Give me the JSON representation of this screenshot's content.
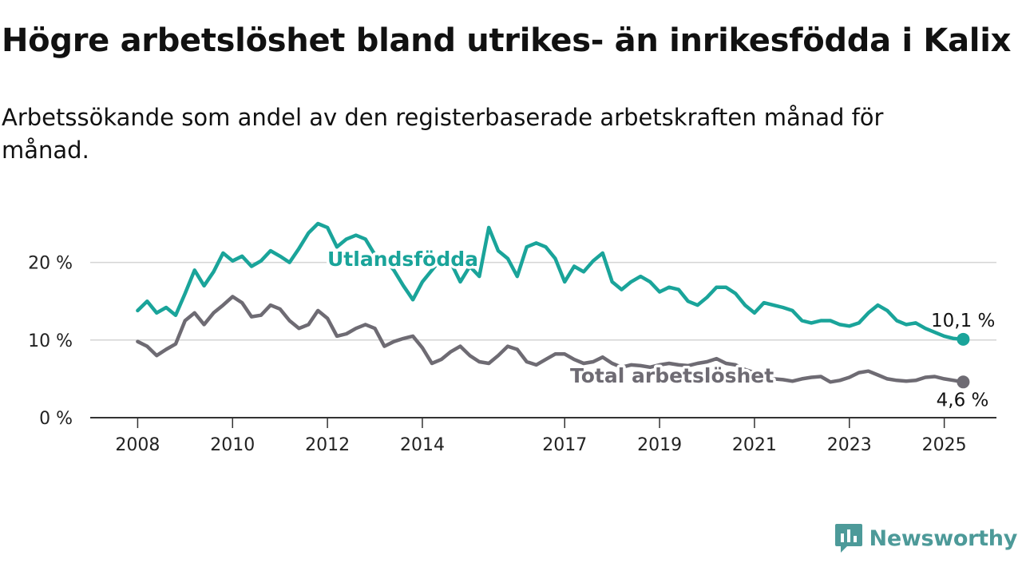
{
  "title": "Högre arbetslöshet bland utrikes- än inrikesfödda i Kalix",
  "subtitle": "Arbetssökande som andel av den registerbaserade arbetskraften månad för månad.",
  "brand": {
    "name": "Newsworthy",
    "color": "#4d9a99"
  },
  "chart_data": {
    "type": "line",
    "title": "Högre arbetslöshet bland utrikes- än inrikesfödda i Kalix",
    "subtitle": "Arbetssökande som andel av den registerbaserade arbetskraften månad för månad.",
    "xlabel": "",
    "ylabel": "",
    "xlim": [
      2008.0,
      2025.4
    ],
    "ylim": [
      0,
      25
    ],
    "yticks": [
      0,
      10,
      20
    ],
    "ytick_labels": [
      "0 %",
      "10 %",
      "20 %"
    ],
    "xticks": [
      2008,
      2010,
      2012,
      2014,
      2017,
      2019,
      2021,
      2023,
      2025
    ],
    "xtick_labels": [
      "2008",
      "2010",
      "2012",
      "2014",
      "2017",
      "2019",
      "2021",
      "2023",
      "2025"
    ],
    "grid": "horizontal",
    "legend": "direct labels on lines",
    "series": [
      {
        "name": "Utlandsfödda",
        "color": "#1aa49a",
        "end_label": "10,1 %",
        "x": [
          2008.0,
          2008.2,
          2008.4,
          2008.6,
          2008.8,
          2009.0,
          2009.2,
          2009.4,
          2009.6,
          2009.8,
          2010.0,
          2010.2,
          2010.4,
          2010.6,
          2010.8,
          2011.0,
          2011.2,
          2011.4,
          2011.6,
          2011.8,
          2012.0,
          2012.2,
          2012.4,
          2012.6,
          2012.8,
          2013.0,
          2013.2,
          2013.4,
          2013.6,
          2013.8,
          2014.0,
          2014.2,
          2014.4,
          2014.6,
          2014.8,
          2015.0,
          2015.2,
          2015.4,
          2015.6,
          2015.8,
          2016.0,
          2016.2,
          2016.4,
          2016.6,
          2016.8,
          2017.0,
          2017.2,
          2017.4,
          2017.6,
          2017.8,
          2018.0,
          2018.2,
          2018.4,
          2018.6,
          2018.8,
          2019.0,
          2019.2,
          2019.4,
          2019.6,
          2019.8,
          2020.0,
          2020.2,
          2020.4,
          2020.6,
          2020.8,
          2021.0,
          2021.2,
          2021.4,
          2021.6,
          2021.8,
          2022.0,
          2022.2,
          2022.4,
          2022.6,
          2022.8,
          2023.0,
          2023.2,
          2023.4,
          2023.6,
          2023.8,
          2024.0,
          2024.2,
          2024.4,
          2024.6,
          2024.8,
          2025.0,
          2025.2,
          2025.4
        ],
        "values": [
          13.8,
          15.0,
          13.5,
          14.2,
          13.2,
          16.0,
          19.0,
          17.0,
          18.8,
          21.2,
          20.2,
          20.8,
          19.5,
          20.2,
          21.5,
          20.8,
          20.0,
          21.8,
          23.8,
          25.0,
          24.5,
          22.0,
          23.0,
          23.5,
          23.0,
          21.0,
          20.5,
          19.0,
          17.0,
          15.2,
          17.5,
          19.0,
          20.5,
          20.0,
          17.5,
          19.5,
          18.2,
          24.5,
          21.5,
          20.5,
          18.2,
          22.0,
          22.5,
          22.0,
          20.5,
          17.5,
          19.5,
          18.8,
          20.2,
          21.2,
          17.5,
          16.5,
          17.5,
          18.2,
          17.5,
          16.2,
          16.8,
          16.5,
          15.0,
          14.5,
          15.5,
          16.8,
          16.8,
          16.0,
          14.5,
          13.5,
          14.8,
          14.5,
          14.2,
          13.8,
          12.5,
          12.2,
          12.5,
          12.5,
          12.0,
          11.8,
          12.2,
          13.5,
          14.5,
          13.8,
          12.5,
          12.0,
          12.2,
          11.5,
          11.0,
          10.5,
          10.2,
          10.1
        ]
      },
      {
        "name": "Total arbetslöshet",
        "color": "#6e6b73",
        "end_label": "4,6 %",
        "x": [
          2008.0,
          2008.2,
          2008.4,
          2008.6,
          2008.8,
          2009.0,
          2009.2,
          2009.4,
          2009.6,
          2009.8,
          2010.0,
          2010.2,
          2010.4,
          2010.6,
          2010.8,
          2011.0,
          2011.2,
          2011.4,
          2011.6,
          2011.8,
          2012.0,
          2012.2,
          2012.4,
          2012.6,
          2012.8,
          2013.0,
          2013.2,
          2013.4,
          2013.6,
          2013.8,
          2014.0,
          2014.2,
          2014.4,
          2014.6,
          2014.8,
          2015.0,
          2015.2,
          2015.4,
          2015.6,
          2015.8,
          2016.0,
          2016.2,
          2016.4,
          2016.6,
          2016.8,
          2017.0,
          2017.2,
          2017.4,
          2017.6,
          2017.8,
          2018.0,
          2018.2,
          2018.4,
          2018.6,
          2018.8,
          2019.0,
          2019.2,
          2019.4,
          2019.6,
          2019.8,
          2020.0,
          2020.2,
          2020.4,
          2020.6,
          2020.8,
          2021.0,
          2021.2,
          2021.4,
          2021.6,
          2021.8,
          2022.0,
          2022.2,
          2022.4,
          2022.6,
          2022.8,
          2023.0,
          2023.2,
          2023.4,
          2023.6,
          2023.8,
          2024.0,
          2024.2,
          2024.4,
          2024.6,
          2024.8,
          2025.0,
          2025.2,
          2025.4
        ],
        "values": [
          9.8,
          9.2,
          8.0,
          8.8,
          9.5,
          12.5,
          13.5,
          12.0,
          13.5,
          14.5,
          15.6,
          14.8,
          13.0,
          13.2,
          14.5,
          14.0,
          12.5,
          11.5,
          12.0,
          13.8,
          12.8,
          10.5,
          10.8,
          11.5,
          12.0,
          11.5,
          9.2,
          9.8,
          10.2,
          10.5,
          9.0,
          7.0,
          7.5,
          8.5,
          9.2,
          8.0,
          7.2,
          7.0,
          8.0,
          9.2,
          8.8,
          7.2,
          6.8,
          7.5,
          8.2,
          8.2,
          7.5,
          7.0,
          7.2,
          7.8,
          7.0,
          6.5,
          6.8,
          6.7,
          6.5,
          6.8,
          7.0,
          6.8,
          6.7,
          7.0,
          7.2,
          7.6,
          7.0,
          6.8,
          6.2,
          5.8,
          5.5,
          5.0,
          4.9,
          4.7,
          5.0,
          5.2,
          5.3,
          4.6,
          4.8,
          5.2,
          5.8,
          6.0,
          5.5,
          5.0,
          4.8,
          4.7,
          4.8,
          5.2,
          5.3,
          5.0,
          4.8,
          4.6
        ]
      }
    ]
  }
}
